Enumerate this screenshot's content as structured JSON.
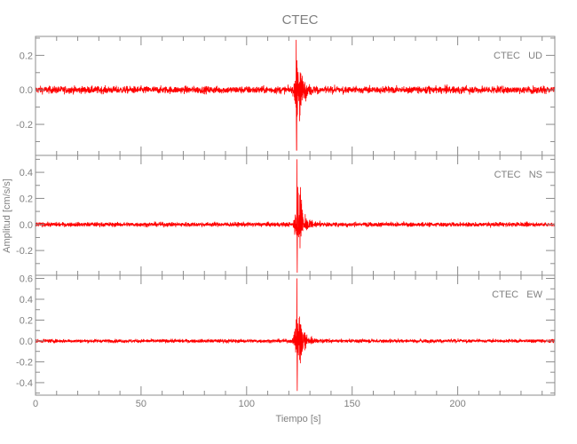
{
  "chart_data": {
    "type": "line",
    "title": "CTEC",
    "xlabel": "Tiempo [s]",
    "ylabel": "Amplitud [cm/s/s]",
    "xlim": [
      0,
      246
    ],
    "x_ticks": [
      0,
      50,
      100,
      150,
      200
    ],
    "grid": false,
    "line_color": "#ff0000",
    "axis_color": "#8c8c8c",
    "panels": [
      {
        "label": "CTEC   UD",
        "ylim": [
          -0.38,
          0.31
        ],
        "y_ticks": [
          -0.2,
          0.0,
          0.2
        ],
        "y_tick_labels": [
          "-0.2",
          "0.0",
          "0.2"
        ],
        "noise_amplitude": 0.015,
        "event_onset": 121.5,
        "event_peak_time": 123.5,
        "peak_max": 0.29,
        "peak_min": -0.35
      },
      {
        "label": "CTEC   NS",
        "ylim": [
          -0.39,
          0.53
        ],
        "y_ticks": [
          -0.2,
          0.0,
          0.2,
          0.4
        ],
        "y_tick_labels": [
          "-0.2",
          "0.0",
          "0.2",
          "0.4"
        ],
        "noise_amplitude": 0.012,
        "event_onset": 121.5,
        "event_peak_time": 123.8,
        "peak_max": 0.5,
        "peak_min": -0.37
      },
      {
        "label": "CTEC   EW",
        "ylim": [
          -0.52,
          0.63
        ],
        "y_ticks": [
          -0.4,
          -0.2,
          0.0,
          0.2,
          0.4,
          0.6
        ],
        "y_tick_labels": [
          "-0.4",
          "-0.2",
          "0.0",
          "0.2",
          "0.4",
          "0.6"
        ],
        "noise_amplitude": 0.012,
        "event_onset": 121.5,
        "event_peak_time": 123.8,
        "peak_max": 0.6,
        "peak_min": -0.48
      }
    ]
  }
}
